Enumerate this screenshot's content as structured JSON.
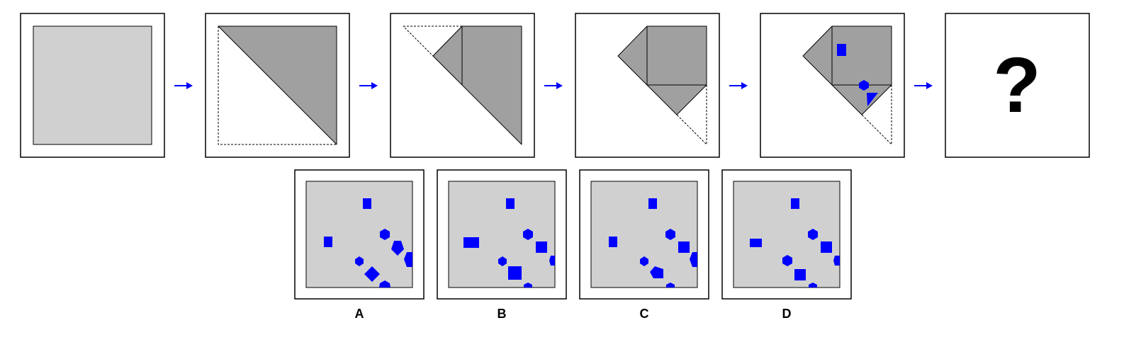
{
  "question_mark": "?",
  "options": [
    {
      "label": "A"
    },
    {
      "label": "B"
    },
    {
      "label": "C"
    },
    {
      "label": "D"
    }
  ],
  "colors": {
    "paper": "#d0d0d0",
    "folded": "#a0a0a0",
    "hole": "#0000ff",
    "arrow": "#0000ff"
  }
}
